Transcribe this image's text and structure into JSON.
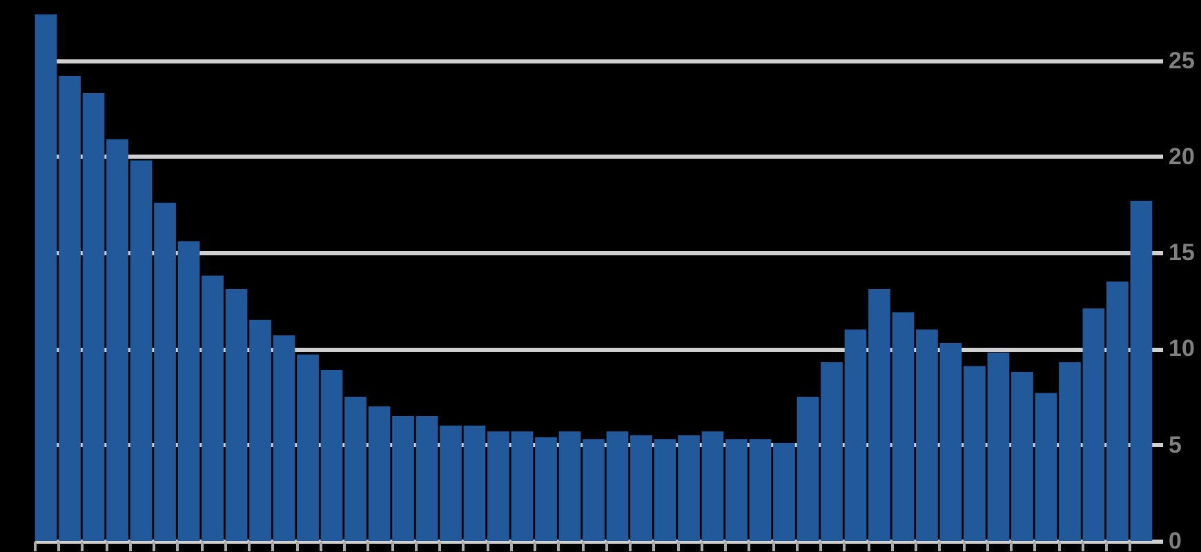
{
  "chart_data": {
    "type": "bar",
    "categories": [
      null,
      null,
      null,
      null,
      null,
      null,
      null,
      null,
      null,
      null,
      null,
      null,
      null,
      null,
      null,
      null,
      null,
      null,
      null,
      null,
      null,
      null,
      null,
      null,
      null,
      null,
      null,
      null,
      null,
      null,
      null,
      null,
      null,
      null,
      null,
      null,
      null,
      null,
      null,
      null,
      null,
      null,
      null,
      null,
      null,
      null,
      null
    ],
    "values": [
      27.4,
      24.2,
      23.3,
      20.9,
      19.8,
      17.6,
      15.6,
      13.8,
      13.1,
      11.5,
      10.7,
      9.7,
      8.9,
      7.5,
      7.0,
      6.5,
      6.5,
      6.0,
      6.0,
      5.7,
      5.7,
      5.4,
      5.7,
      5.3,
      5.7,
      5.5,
      5.3,
      5.5,
      5.7,
      5.3,
      5.3,
      5.1,
      7.5,
      9.3,
      11.0,
      13.1,
      11.9,
      11.0,
      10.3,
      9.1,
      9.8,
      8.8,
      7.7,
      9.3,
      12.1,
      13.5,
      17.7
    ],
    "color": "#22599a",
    "ylim": [
      0,
      27.5
    ],
    "yticks": [
      0,
      5,
      10,
      15,
      20,
      25
    ],
    "grid": "y",
    "tick_labels": "y"
  }
}
